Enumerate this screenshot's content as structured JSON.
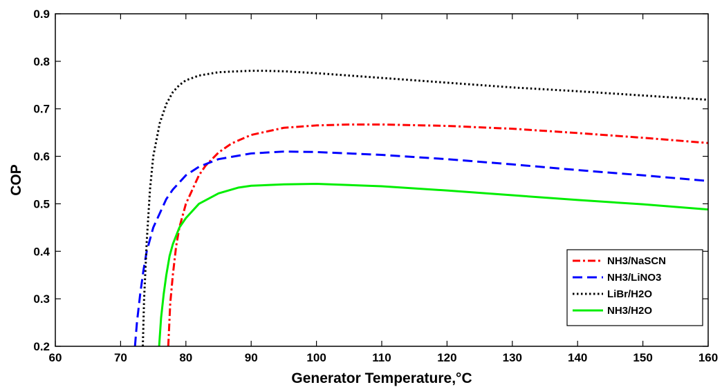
{
  "chart_data": {
    "type": "line",
    "title": "",
    "xlabel": "Generator Temperature,°C",
    "ylabel": "COP",
    "xlim": [
      60,
      160
    ],
    "ylim": [
      0.2,
      0.9
    ],
    "xticks": [
      60,
      70,
      80,
      90,
      100,
      110,
      120,
      130,
      140,
      150,
      160
    ],
    "yticks": [
      0.2,
      0.3,
      0.4,
      0.5,
      0.6,
      0.7,
      0.8,
      0.9
    ],
    "xtick_labels": [
      "60",
      "70",
      "80",
      "90",
      "100",
      "110",
      "120",
      "130",
      "140",
      "150",
      "160"
    ],
    "ytick_labels": [
      "0.2",
      "0.3",
      "0.4",
      "0.5",
      "0.6",
      "0.7",
      "0.8",
      "0.9"
    ],
    "grid": false,
    "legend_position": "bottom-right",
    "series": [
      {
        "name": "NH3/NaSCN",
        "color": "#ff0000",
        "dash": "dash-dot",
        "x": [
          77.3,
          77.6,
          78,
          78.5,
          79,
          80,
          81,
          82,
          83,
          85,
          87,
          90,
          95,
          100,
          105,
          110,
          120,
          130,
          140,
          150,
          160
        ],
        "y": [
          0.2,
          0.29,
          0.35,
          0.41,
          0.45,
          0.5,
          0.53,
          0.56,
          0.58,
          0.608,
          0.627,
          0.645,
          0.66,
          0.665,
          0.667,
          0.667,
          0.664,
          0.658,
          0.649,
          0.639,
          0.628
        ]
      },
      {
        "name": "NH3/LiNO3",
        "color": "#0000ff",
        "dash": "dash",
        "x": [
          72.2,
          72.5,
          73,
          73.5,
          74,
          75,
          76,
          77,
          78,
          80,
          82,
          85,
          90,
          95,
          100,
          110,
          120,
          130,
          140,
          150,
          160
        ],
        "y": [
          0.2,
          0.25,
          0.31,
          0.36,
          0.4,
          0.45,
          0.48,
          0.51,
          0.53,
          0.56,
          0.578,
          0.594,
          0.606,
          0.61,
          0.609,
          0.603,
          0.594,
          0.583,
          0.571,
          0.56,
          0.548
        ]
      },
      {
        "name": "LiBr/H2O",
        "color": "#000000",
        "dash": "dot",
        "x": [
          73.4,
          73.6,
          74,
          74.5,
          75,
          76,
          77,
          78,
          79,
          80,
          82,
          85,
          88,
          90,
          92,
          95,
          100,
          110,
          120,
          130,
          140,
          150,
          160
        ],
        "y": [
          0.2,
          0.3,
          0.42,
          0.53,
          0.6,
          0.67,
          0.71,
          0.735,
          0.75,
          0.76,
          0.77,
          0.777,
          0.779,
          0.78,
          0.78,
          0.779,
          0.775,
          0.765,
          0.755,
          0.745,
          0.737,
          0.728,
          0.719
        ]
      },
      {
        "name": "NH3/H2O",
        "color": "#00ee00",
        "dash": "solid",
        "x": [
          75.9,
          76.2,
          76.6,
          77,
          77.5,
          78,
          79,
          80,
          82,
          85,
          88,
          90,
          95,
          100,
          110,
          120,
          130,
          140,
          150,
          160
        ],
        "y": [
          0.2,
          0.26,
          0.31,
          0.35,
          0.39,
          0.415,
          0.45,
          0.47,
          0.5,
          0.522,
          0.534,
          0.538,
          0.541,
          0.542,
          0.537,
          0.528,
          0.518,
          0.508,
          0.499,
          0.488
        ]
      }
    ]
  }
}
